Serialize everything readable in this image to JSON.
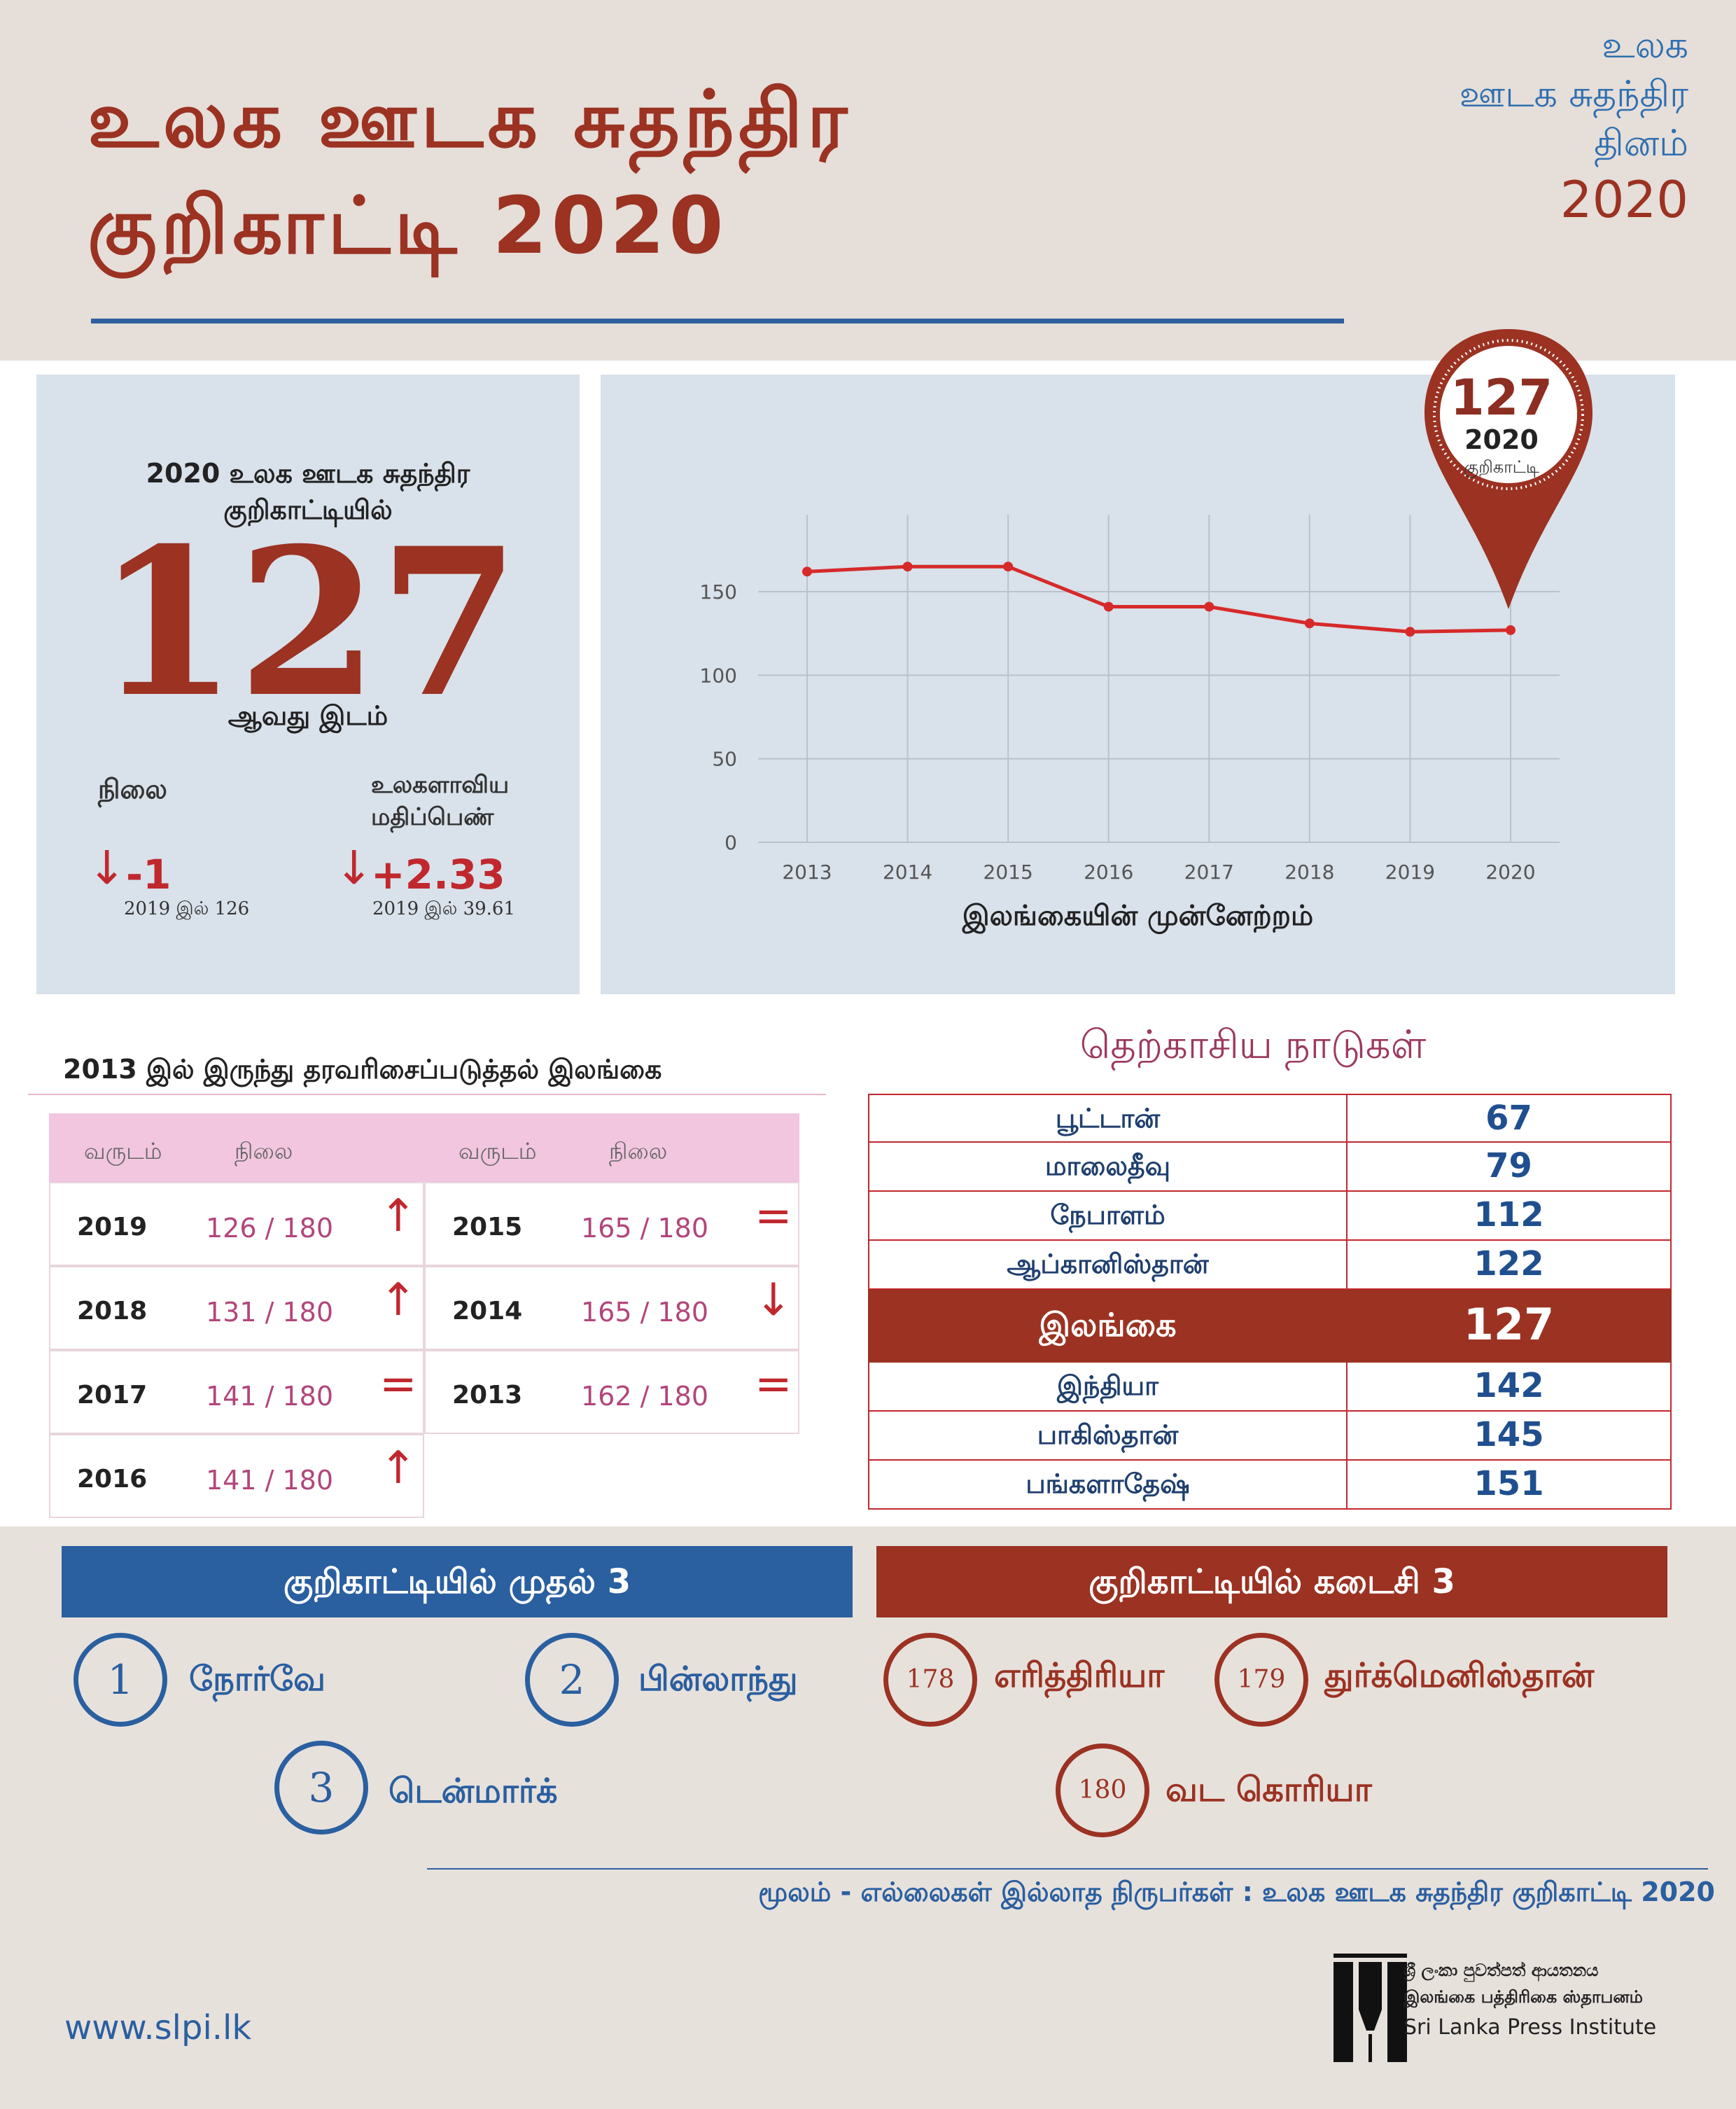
{
  "header": {
    "title_line1": "உலக ஊடக சுதந்திர",
    "title_line2": "குறிகாட்டி 2020",
    "corner_line1": "உலக",
    "corner_line2": "ஊடக சுதந்திர",
    "corner_line3": "தினம்",
    "corner_line4": "2020"
  },
  "score_panel": {
    "heading_line1": "2020 உலக ஊடக சுதந்திர",
    "heading_line2": "குறிகாட்டியில்",
    "rank": "127",
    "rank_label": "ஆவது இடம்",
    "position_label": "நிலை",
    "score_label_line1": "உலகளாவிய",
    "score_label_line2": "மதிப்பெண்",
    "position_delta": "-1",
    "score_delta": "+2.33",
    "position_prev": "2019 இல் 126",
    "score_prev": "2019 இல் 39.61",
    "arrow_glyph": "↓"
  },
  "pin": {
    "rank": "127",
    "year": "2020",
    "label": "குறிகாட்டி",
    "color": "#9b3222"
  },
  "chart_data": {
    "type": "line",
    "title": "இலங்கையின் முன்னேற்றம்",
    "x": [
      "2013",
      "2014",
      "2015",
      "2016",
      "2017",
      "2018",
      "2019",
      "2020"
    ],
    "y": [
      162,
      165,
      165,
      141,
      141,
      131,
      126,
      127
    ],
    "ylim": [
      0,
      150
    ],
    "yticks": [
      0,
      50,
      100,
      150
    ],
    "grid": true,
    "line_color": "#d62a2a"
  },
  "ranking_table": {
    "heading": "2013 இல் இருந்து தரவரிசைப்படுத்தல் இலங்கை",
    "col_year": "வருடம்",
    "col_rank": "நிலை",
    "rows": [
      {
        "year": "2019",
        "rank": "126 / 180",
        "trend": "↑"
      },
      {
        "year": "2018",
        "rank": "131 / 180",
        "trend": "↑"
      },
      {
        "year": "2017",
        "rank": "141 / 180",
        "trend": "="
      },
      {
        "year": "2016",
        "rank": "141 / 180",
        "trend": "↑"
      },
      {
        "year": "2015",
        "rank": "165 / 180",
        "trend": "="
      },
      {
        "year": "2014",
        "rank": "165 / 180",
        "trend": "↓"
      },
      {
        "year": "2013",
        "rank": "162 / 180",
        "trend": "="
      }
    ]
  },
  "south_asia": {
    "heading": "தெற்காசிய நாடுகள்",
    "rows": [
      {
        "country": "பூட்டான்",
        "rank": "67"
      },
      {
        "country": "மாலைதீவு",
        "rank": "79"
      },
      {
        "country": "நேபாளம்",
        "rank": "112"
      },
      {
        "country": "ஆப்கானிஸ்தான்",
        "rank": "122"
      },
      {
        "country": "இலங்கை",
        "rank": "127"
      },
      {
        "country": "இந்தியா",
        "rank": "142"
      },
      {
        "country": "பாகிஸ்தான்",
        "rank": "145"
      },
      {
        "country": "பங்களாதேஷ்",
        "rank": "151"
      }
    ],
    "highlight_color": "#9b3222"
  },
  "top3": {
    "heading": "குறிகாட்டியில் முதல் 3",
    "items": [
      {
        "rank": "1",
        "country": "நோர்வே"
      },
      {
        "rank": "2",
        "country": "பின்லாந்து"
      },
      {
        "rank": "3",
        "country": "டென்மார்க்"
      }
    ]
  },
  "bottom3": {
    "heading": "குறிகாட்டியில் கடைசி 3",
    "items": [
      {
        "rank": "178",
        "country": "எரித்திரியா"
      },
      {
        "rank": "179",
        "country": "துர்க்மெனிஸ்தான்"
      },
      {
        "rank": "180",
        "country": "வட கொரியா"
      }
    ]
  },
  "footer": {
    "source": "மூலம் - எல்லைகள் இல்லாத நிருபர்கள் : உலக ஊடக சுதந்திர குறிகாட்டி 2020",
    "website": "www.slpi.lk",
    "logo_sinhala": "ශ්‍රී ලංකා පුවත්පත් ආයතනය",
    "logo_tamil": "இலங்கை பத்திரிகை ஸ்தாபனம்",
    "logo_english": "Sri Lanka Press Institute"
  },
  "colors": {
    "brand_red": "#9b3222",
    "brand_blue": "#2a5fa0",
    "panel_bg": "#d9e1ea"
  }
}
